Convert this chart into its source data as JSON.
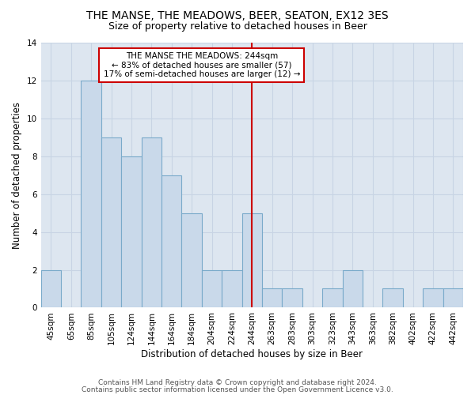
{
  "title": "THE MANSE, THE MEADOWS, BEER, SEATON, EX12 3ES",
  "subtitle": "Size of property relative to detached houses in Beer",
  "xlabel": "Distribution of detached houses by size in Beer",
  "ylabel": "Number of detached properties",
  "categories": [
    "45sqm",
    "65sqm",
    "85sqm",
    "105sqm",
    "124sqm",
    "144sqm",
    "164sqm",
    "184sqm",
    "204sqm",
    "224sqm",
    "244sqm",
    "263sqm",
    "283sqm",
    "303sqm",
    "323sqm",
    "343sqm",
    "363sqm",
    "382sqm",
    "402sqm",
    "422sqm",
    "442sqm"
  ],
  "values": [
    2,
    0,
    12,
    9,
    8,
    9,
    7,
    5,
    2,
    2,
    5,
    1,
    1,
    0,
    1,
    2,
    0,
    1,
    0,
    1,
    1
  ],
  "bar_color": "#c9d9ea",
  "bar_edge_color": "#7aaaca",
  "highlight_index": 10,
  "highlight_line_color": "#cc0000",
  "annotation_text": "THE MANSE THE MEADOWS: 244sqm\n← 83% of detached houses are smaller (57)\n17% of semi-detached houses are larger (12) →",
  "annotation_box_color": "#cc0000",
  "ylim": [
    0,
    14
  ],
  "yticks": [
    0,
    2,
    4,
    6,
    8,
    10,
    12,
    14
  ],
  "grid_color": "#c8d4e4",
  "background_color": "#dde6f0",
  "footer_line1": "Contains HM Land Registry data © Crown copyright and database right 2024.",
  "footer_line2": "Contains public sector information licensed under the Open Government Licence v3.0.",
  "title_fontsize": 10,
  "subtitle_fontsize": 9,
  "axis_label_fontsize": 8.5,
  "tick_fontsize": 7.5,
  "annotation_fontsize": 7.5,
  "footer_fontsize": 6.5
}
